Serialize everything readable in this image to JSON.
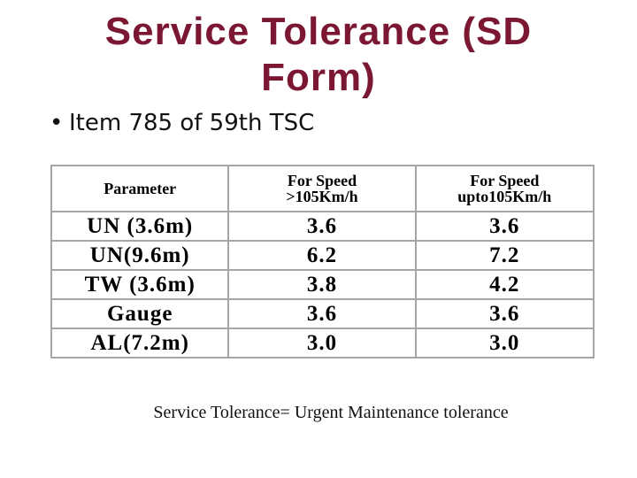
{
  "title": [
    "Service Tolerance (SD",
    "Form)"
  ],
  "bullet": "Item 785 of 59th TSC",
  "table": {
    "header": [
      "Parameter",
      "For Speed\n>105Km/h",
      "For Speed\nupto105Km/h"
    ],
    "rows": [
      [
        "UN (3.6m)",
        "3.6",
        "3.6"
      ],
      [
        "UN(9.6m)",
        "6.2",
        "7.2"
      ],
      [
        "TW (3.6m)",
        "3.8",
        "4.2"
      ],
      [
        "Gauge",
        "3.6",
        "3.6"
      ],
      [
        "AL(7.2m)",
        "3.0",
        "3.0"
      ]
    ]
  },
  "footnote": "Service Tolerance= Urgent Maintenance tolerance"
}
